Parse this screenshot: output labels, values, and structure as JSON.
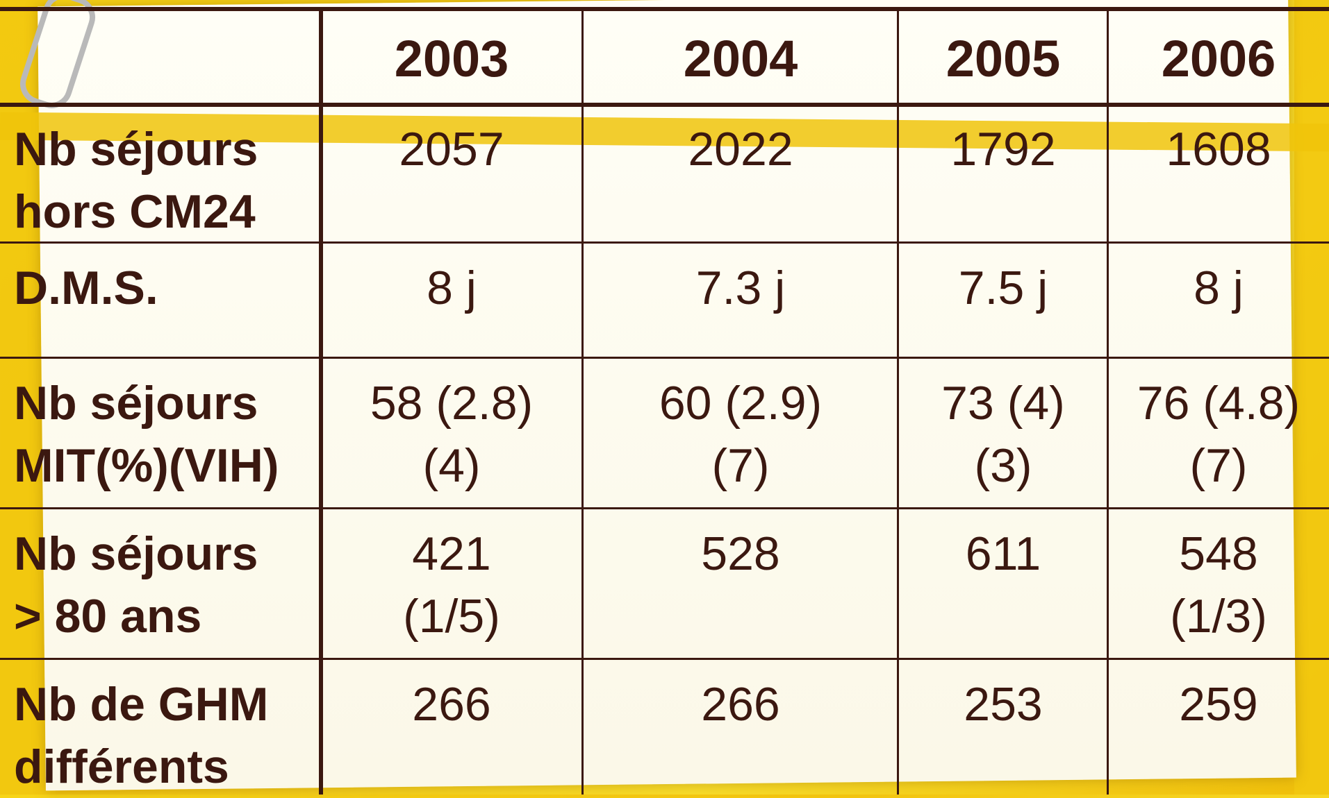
{
  "table": {
    "columns": [
      "2003",
      "2004",
      "2005",
      "2006"
    ],
    "rows": [
      {
        "label": [
          "Nb séjours",
          "hors CM24"
        ],
        "cells": [
          [
            "2057"
          ],
          [
            "2022"
          ],
          [
            "1792"
          ],
          [
            "1608"
          ]
        ]
      },
      {
        "label": [
          "D.M.S."
        ],
        "cells": [
          [
            "8 j"
          ],
          [
            "7.3 j"
          ],
          [
            "7.5 j"
          ],
          [
            "8 j"
          ]
        ]
      },
      {
        "label": [
          "Nb séjours",
          "MIT(%)(VIH)"
        ],
        "cells": [
          [
            "58 (2.8)",
            "(4)"
          ],
          [
            "60 (2.9)",
            "(7)"
          ],
          [
            "73 (4)",
            "(3)"
          ],
          [
            "76 (4.8)",
            "(7)"
          ]
        ]
      },
      {
        "label": [
          "Nb séjours",
          "> 80 ans"
        ],
        "cells": [
          [
            "421",
            "(1/5)"
          ],
          [
            "528"
          ],
          [
            "611"
          ],
          [
            "548",
            "(1/3)"
          ]
        ]
      },
      {
        "label": [
          "Nb de GHM",
          "différents"
        ],
        "cells": [
          [
            "266"
          ],
          [
            "266"
          ],
          [
            "253"
          ],
          [
            "259"
          ]
        ]
      }
    ]
  }
}
